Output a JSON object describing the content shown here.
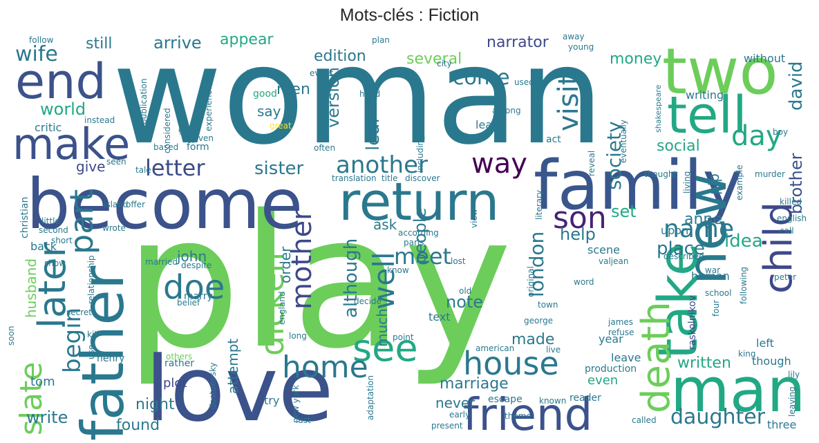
{
  "title": "Mots-clés : Fiction",
  "palette": "viridis",
  "words": [
    {
      "text": "woman",
      "color": "#2a788e"
    },
    {
      "text": "play",
      "color": "#6ccd5a"
    },
    {
      "text": "love",
      "color": "#3b528b"
    },
    {
      "text": "become",
      "color": "#3b528b"
    },
    {
      "text": "family",
      "color": "#39568c"
    },
    {
      "text": "two",
      "color": "#6ccd5a"
    },
    {
      "text": "return",
      "color": "#2a788e"
    },
    {
      "text": "man",
      "color": "#22a884"
    },
    {
      "text": "new",
      "color": "#2a788e"
    },
    {
      "text": "take",
      "color": "#22a884"
    },
    {
      "text": "father",
      "color": "#2a788e"
    },
    {
      "text": "death",
      "color": "#6ccd5a"
    },
    {
      "text": "tell",
      "color": "#22a884"
    },
    {
      "text": "friend",
      "color": "#3b528b"
    },
    {
      "text": "later",
      "color": "#2a788e"
    },
    {
      "text": "end",
      "color": "#3b528b"
    },
    {
      "text": "make",
      "color": "#3b528b"
    },
    {
      "text": "child",
      "color": "#3e4989"
    },
    {
      "text": "house",
      "color": "#2a788e"
    },
    {
      "text": "see",
      "color": "#22a884"
    },
    {
      "text": "dicken",
      "color": "#6ccd5a"
    },
    {
      "text": "part",
      "color": "#2a788e"
    },
    {
      "text": "home",
      "color": "#2a788e"
    },
    {
      "text": "well",
      "color": "#2a788e"
    },
    {
      "text": "mother",
      "color": "#3e4989"
    },
    {
      "text": "doe",
      "color": "#2a788e"
    },
    {
      "text": "begin",
      "color": "#2a788e"
    },
    {
      "text": "name",
      "color": "#2a788e"
    },
    {
      "text": "son",
      "color": "#482173"
    },
    {
      "text": "another",
      "color": "#2a788e"
    },
    {
      "text": "way",
      "color": "#440154"
    },
    {
      "text": "visit",
      "color": "#2a788e"
    },
    {
      "text": "day",
      "color": "#22a884"
    },
    {
      "text": "letter",
      "color": "#3e4989"
    },
    {
      "text": "wife",
      "color": "#2a788e"
    },
    {
      "text": "london",
      "color": "#2a788e"
    },
    {
      "text": "meet",
      "color": "#2a788e"
    },
    {
      "text": "slate",
      "color": "#6ccd5a"
    },
    {
      "text": "daughter",
      "color": "#2a788e"
    },
    {
      "text": "society",
      "color": "#2a788e"
    },
    {
      "text": "sister",
      "color": "#2a788e"
    },
    {
      "text": "although",
      "color": "#2a788e"
    },
    {
      "text": "come",
      "color": "#2a788e"
    },
    {
      "text": "leaf",
      "color": "#2a788e"
    },
    {
      "text": "version",
      "color": "#2a788e"
    },
    {
      "text": "david",
      "color": "#2a788e"
    },
    {
      "text": "brother",
      "color": "#3b528b"
    },
    {
      "text": "people",
      "color": "#2a788e"
    },
    {
      "text": "idea",
      "color": "#22a884"
    },
    {
      "text": "place",
      "color": "#2a788e"
    },
    {
      "text": "help",
      "color": "#2a788e"
    },
    {
      "text": "social",
      "color": "#22a884"
    },
    {
      "text": "money",
      "color": "#22a884"
    },
    {
      "text": "world",
      "color": "#22a884"
    },
    {
      "text": "write",
      "color": "#2a788e"
    },
    {
      "text": "night",
      "color": "#2a788e"
    },
    {
      "text": "written",
      "color": "#22a884"
    },
    {
      "text": "edition",
      "color": "#2a788e"
    },
    {
      "text": "several",
      "color": "#6ccd5a"
    },
    {
      "text": "arrive",
      "color": "#2a788e"
    },
    {
      "text": "appear",
      "color": "#22a884"
    },
    {
      "text": "narrator",
      "color": "#3e4989"
    },
    {
      "text": "still",
      "color": "#2a788e"
    },
    {
      "text": "note",
      "color": "#2a788e"
    },
    {
      "text": "marriage",
      "color": "#2a788e"
    },
    {
      "text": "made",
      "color": "#2a788e"
    },
    {
      "text": "found",
      "color": "#2a788e"
    },
    {
      "text": "never",
      "color": "#2a788e"
    },
    {
      "text": "give",
      "color": "#3e4989"
    },
    {
      "text": "say",
      "color": "#2a788e"
    },
    {
      "text": "anne",
      "color": "#2a788e"
    },
    {
      "text": "john",
      "color": "#2a788e"
    },
    {
      "text": "ask",
      "color": "#2a788e"
    },
    {
      "text": "set",
      "color": "#22a884"
    },
    {
      "text": "pip",
      "color": "#2a788e"
    },
    {
      "text": "much",
      "color": "#2a788e"
    },
    {
      "text": "order",
      "color": "#2a788e"
    },
    {
      "text": "attempt",
      "color": "#2a788e"
    },
    {
      "text": "husband",
      "color": "#6ccd5a"
    },
    {
      "text": "men",
      "color": "#2a788e"
    },
    {
      "text": "even",
      "color": "#22a884"
    },
    {
      "text": "plot",
      "color": "#3e4989"
    },
    {
      "text": "tom",
      "color": "#2a788e"
    },
    {
      "text": "three",
      "color": "#2a788e"
    },
    {
      "text": "though",
      "color": "#2a788e"
    },
    {
      "text": "year",
      "color": "#2a788e"
    },
    {
      "text": "leave",
      "color": "#2a788e"
    },
    {
      "text": "left",
      "color": "#2a788e"
    },
    {
      "text": "upon",
      "color": "#2a788e"
    },
    {
      "text": "scene",
      "color": "#2a788e"
    },
    {
      "text": "human",
      "color": "#2a788e"
    },
    {
      "text": "writing",
      "color": "#2a788e"
    },
    {
      "text": "without",
      "color": "#2a788e"
    },
    {
      "text": "back",
      "color": "#2a788e"
    },
    {
      "text": "christian",
      "color": "#2a788e"
    },
    {
      "text": "try",
      "color": "#2a788e"
    },
    {
      "text": "text",
      "color": "#2a788e"
    },
    {
      "text": "learn",
      "color": "#2a788e"
    },
    {
      "text": "critic",
      "color": "#2a788e"
    },
    {
      "text": "follow",
      "color": "#2a788e"
    },
    {
      "text": "good",
      "color": "#22a884"
    },
    {
      "text": "great",
      "color": "#fde725"
    },
    {
      "text": "role",
      "color": "#2a788e"
    },
    {
      "text": "act",
      "color": "#2a788e"
    },
    {
      "text": "raskolnikov",
      "color": "#3e4989"
    },
    {
      "text": "valjean",
      "color": "#2a788e"
    },
    {
      "text": "shakespeare",
      "color": "#2a788e"
    },
    {
      "text": "eventually",
      "color": "#2a788e"
    },
    {
      "text": "relationship",
      "color": "#2a788e"
    },
    {
      "text": "marry",
      "color": "#2a788e"
    },
    {
      "text": "short",
      "color": "#2a788e"
    },
    {
      "text": "offer",
      "color": "#2a788e"
    },
    {
      "text": "island",
      "color": "#2a788e"
    },
    {
      "text": "reveal",
      "color": "#2a788e"
    },
    {
      "text": "killed",
      "color": "#2a788e"
    },
    {
      "text": "english",
      "color": "#2a788e"
    },
    {
      "text": "call",
      "color": "#2a788e"
    },
    {
      "text": "rather",
      "color": "#2a788e"
    },
    {
      "text": "form",
      "color": "#2a788e"
    },
    {
      "text": "given",
      "color": "#2a788e"
    },
    {
      "text": "girl",
      "color": "#2a788e"
    },
    {
      "text": "lily",
      "color": "#2a788e"
    },
    {
      "text": "king",
      "color": "#2a788e"
    },
    {
      "text": "reader",
      "color": "#2a788e"
    },
    {
      "text": "escape",
      "color": "#2a788e"
    },
    {
      "text": "production",
      "color": "#2a788e"
    },
    {
      "text": "henry",
      "color": "#2a788e"
    },
    {
      "text": "others",
      "color": "#6ccd5a"
    },
    {
      "text": "george",
      "color": "#2a788e"
    },
    {
      "text": "james",
      "color": "#2a788e"
    },
    {
      "text": "peter",
      "color": "#2a788e"
    },
    {
      "text": "war",
      "color": "#2a788e"
    },
    {
      "text": "school",
      "color": "#2a788e"
    },
    {
      "text": "original",
      "color": "#2a788e"
    },
    {
      "text": "old",
      "color": "#2a788e"
    },
    {
      "text": "know",
      "color": "#2a788e"
    },
    {
      "text": "lost",
      "color": "#2a788e"
    },
    {
      "text": "described",
      "color": "#2a788e"
    },
    {
      "text": "word",
      "color": "#2a788e"
    },
    {
      "text": "paris",
      "color": "#2a788e"
    },
    {
      "text": "according",
      "color": "#2a788e"
    },
    {
      "text": "despite",
      "color": "#2a788e"
    },
    {
      "text": "married",
      "color": "#2a788e"
    },
    {
      "text": "show",
      "color": "#2a788e"
    },
    {
      "text": "wrote",
      "color": "#2a788e"
    },
    {
      "text": "second",
      "color": "#2a788e"
    },
    {
      "text": "little",
      "color": "#2a788e"
    },
    {
      "text": "secret",
      "color": "#2a788e"
    },
    {
      "text": "belief",
      "color": "#2a788e"
    },
    {
      "text": "kill",
      "color": "#2a788e"
    },
    {
      "text": "use",
      "color": "#2a788e"
    },
    {
      "text": "live",
      "color": "#2a788e"
    },
    {
      "text": "point",
      "color": "#2a788e"
    },
    {
      "text": "decide",
      "color": "#2a788e"
    },
    {
      "text": "american",
      "color": "#2a788e"
    },
    {
      "text": "refuse",
      "color": "#2a788e"
    },
    {
      "text": "town",
      "color": "#2a788e"
    },
    {
      "text": "four",
      "color": "#2a788e"
    },
    {
      "text": "following",
      "color": "#2a788e"
    },
    {
      "text": "view",
      "color": "#2a788e"
    },
    {
      "text": "living",
      "color": "#2a788e"
    },
    {
      "text": "literary",
      "color": "#2a788e"
    },
    {
      "text": "example",
      "color": "#2a788e"
    },
    {
      "text": "murder",
      "color": "#2a788e"
    },
    {
      "text": "thought",
      "color": "#2a788e"
    },
    {
      "text": "title",
      "color": "#2a788e"
    },
    {
      "text": "discover",
      "color": "#2a788e"
    },
    {
      "text": "translation",
      "color": "#2a788e"
    },
    {
      "text": "including",
      "color": "#2a788e"
    },
    {
      "text": "often",
      "color": "#2a788e"
    },
    {
      "text": "based",
      "color": "#2a788e"
    },
    {
      "text": "tale",
      "color": "#2a788e"
    },
    {
      "text": "seen",
      "color": "#2a788e"
    },
    {
      "text": "considered",
      "color": "#2a788e"
    },
    {
      "text": "instead",
      "color": "#2a788e"
    },
    {
      "text": "experience",
      "color": "#2a788e"
    },
    {
      "text": "publication",
      "color": "#2a788e"
    },
    {
      "text": "turn",
      "color": "#2a788e"
    },
    {
      "text": "event",
      "color": "#2a788e"
    },
    {
      "text": "plan",
      "color": "#2a788e"
    },
    {
      "text": "city",
      "color": "#2a788e"
    },
    {
      "text": "hand",
      "color": "#2a788e"
    },
    {
      "text": "used",
      "color": "#2a788e"
    },
    {
      "text": "among",
      "color": "#2a788e"
    },
    {
      "text": "boy",
      "color": "#2a788e"
    },
    {
      "text": "away",
      "color": "#2a788e"
    },
    {
      "text": "young",
      "color": "#2a788e"
    },
    {
      "text": "dostoevsky",
      "color": "#2a788e"
    },
    {
      "text": "new york",
      "color": "#2a788e"
    },
    {
      "text": "adaptation",
      "color": "#2a788e"
    },
    {
      "text": "early",
      "color": "#2a788e"
    },
    {
      "text": "present",
      "color": "#2a788e"
    },
    {
      "text": "last",
      "color": "#2a788e"
    },
    {
      "text": "known",
      "color": "#2a788e"
    },
    {
      "text": "theme",
      "color": "#2a788e"
    },
    {
      "text": "called",
      "color": "#2a788e"
    },
    {
      "text": "leaving",
      "color": "#2a788e"
    },
    {
      "text": "soon",
      "color": "#2a788e"
    },
    {
      "text": "england",
      "color": "#2a788e"
    },
    {
      "text": "long",
      "color": "#2a788e"
    }
  ]
}
